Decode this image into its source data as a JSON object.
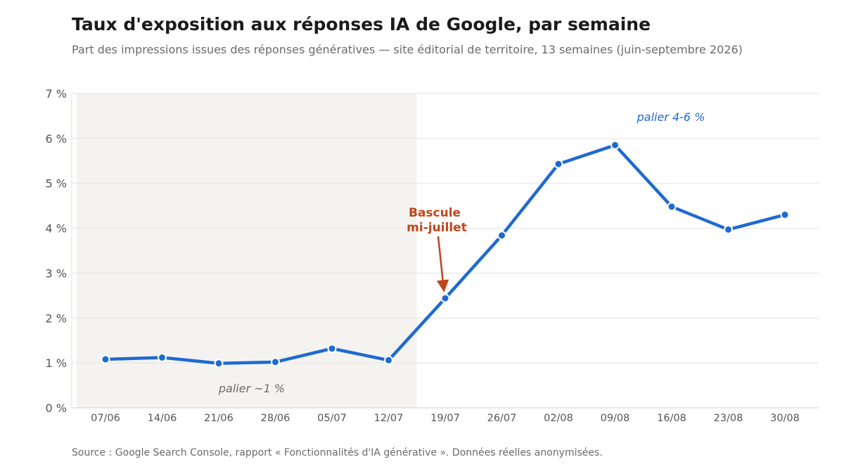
{
  "title": "Taux d'exposition aux réponses IA de Google, par semaine",
  "subtitle": "Part des impressions issues des réponses génératives — site éditorial de territoire, 13 semaines (juin-septembre 2026)",
  "source": "Source : Google Search Console, rapport « Fonctionnalités d'IA générative ». Données réelles anonymisées.",
  "colors": {
    "line": "#1f6ad1",
    "shade": "#f4f3f0",
    "annotation": "#c0461a",
    "plateau_high": "#1f6ad1",
    "plateau_low": "#6b6b6b",
    "grid": "#e3e3e3"
  },
  "chart_data": {
    "type": "line",
    "categories": [
      "07/06",
      "14/06",
      "21/06",
      "28/06",
      "05/07",
      "12/07",
      "19/07",
      "26/07",
      "02/08",
      "09/08",
      "16/08",
      "23/08",
      "30/08"
    ],
    "series": [
      {
        "values": [
          1.08,
          1.12,
          0.99,
          1.02,
          1.32,
          1.06,
          2.44,
          3.84,
          5.43,
          5.85,
          4.48,
          3.97,
          4.3
        ]
      }
    ],
    "ylim": [
      0,
      7
    ],
    "yticks": [
      0,
      1,
      2,
      3,
      4,
      5,
      6,
      7
    ],
    "ytick_labels": [
      "0 %",
      "1 %",
      "2 %",
      "3 %",
      "4 %",
      "5 %",
      "6 %",
      "7 %"
    ],
    "grid": true,
    "shaded_region": {
      "from": "07/06",
      "to": "12/07"
    },
    "annotations": {
      "switch": {
        "lines": [
          "Bascule",
          "mi-juillet"
        ],
        "points_to": "19/07"
      },
      "plateau_low": "palier ~1 %",
      "plateau_high": "palier 4-6 %"
    }
  }
}
